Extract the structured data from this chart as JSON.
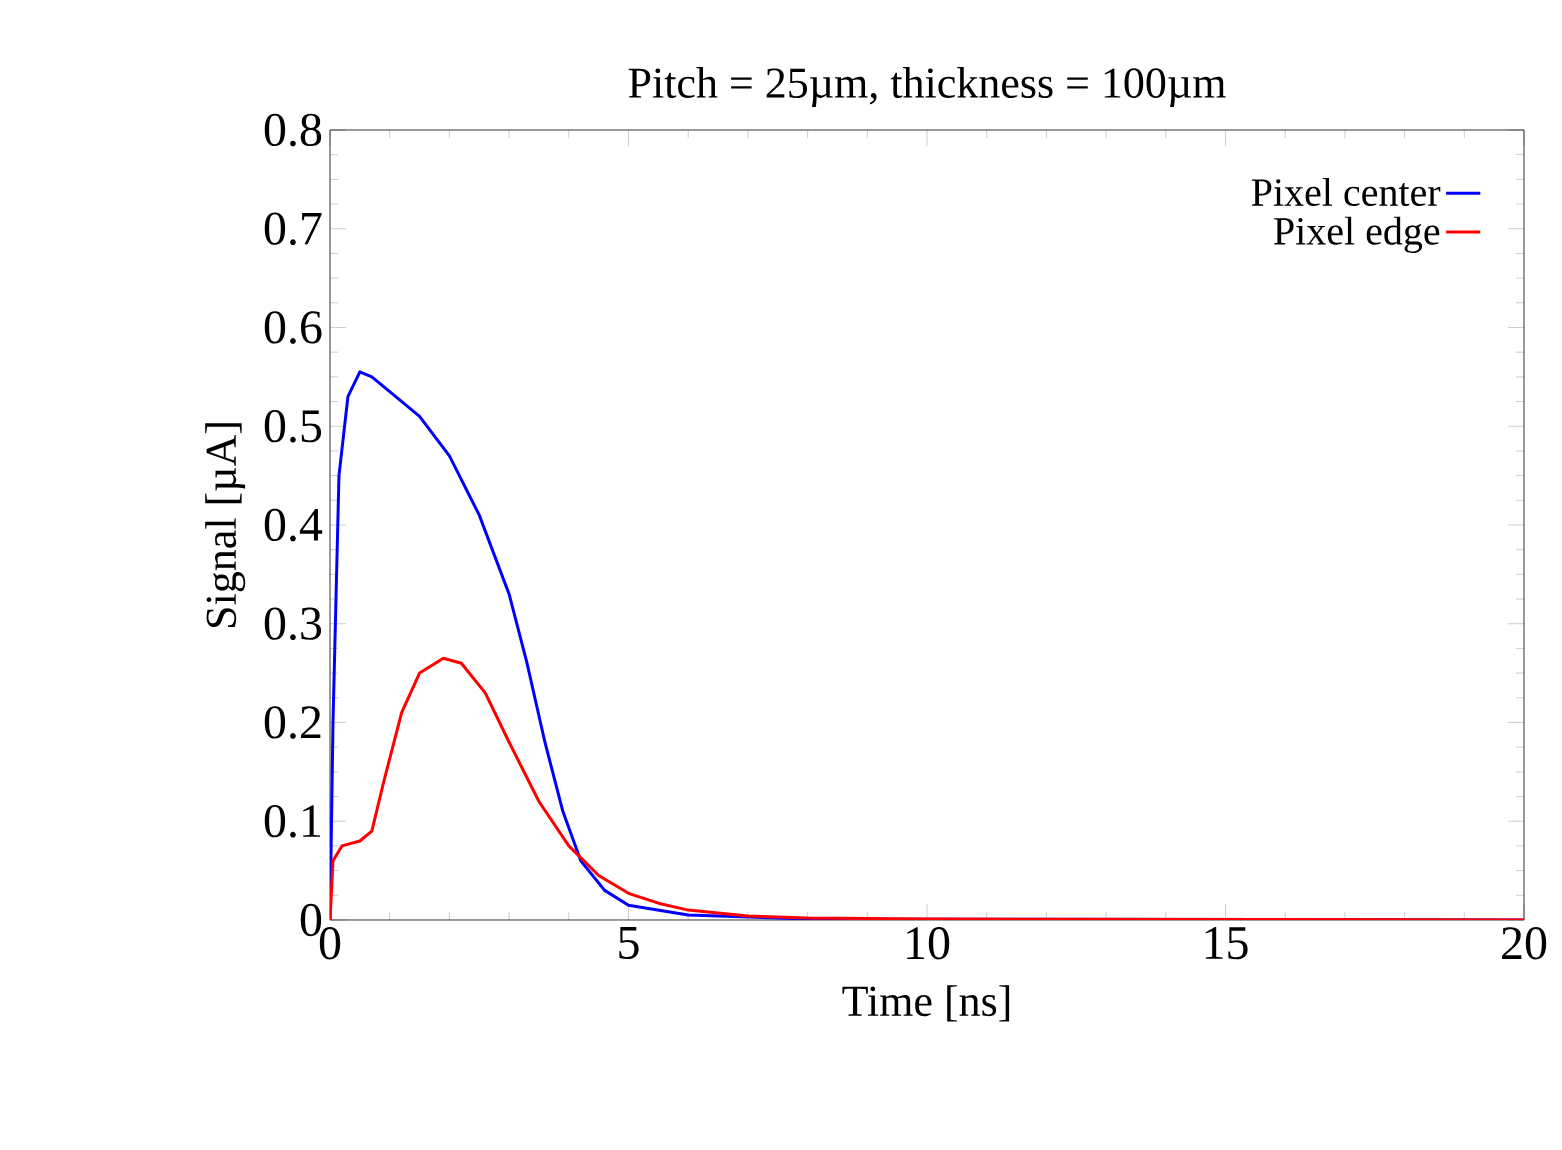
{
  "chart_data": {
    "type": "line",
    "title": "Pitch = 25µm, thickness = 100µm",
    "xlabel": "Time [ns]",
    "ylabel": "Signal [µA]",
    "xlim": [
      0,
      20
    ],
    "ylim": [
      0,
      0.8
    ],
    "xticks": [
      0,
      5,
      10,
      15,
      20
    ],
    "yticks": [
      0,
      0.1,
      0.2,
      0.3,
      0.4,
      0.5,
      0.6,
      0.7,
      0.8
    ],
    "grid": false,
    "legend": "top right",
    "marker": "none",
    "line_style": "solid",
    "series": [
      {
        "name": "Pixel center",
        "color": "#0000ff",
        "x": [
          0,
          0.05,
          0.15,
          0.3,
          0.5,
          0.7,
          1,
          1.5,
          2,
          2.5,
          3,
          3.3,
          3.6,
          3.9,
          4.2,
          4.6,
          5,
          6,
          8,
          20
        ],
        "values": [
          0,
          0.2,
          0.45,
          0.53,
          0.555,
          0.55,
          0.535,
          0.51,
          0.47,
          0.41,
          0.33,
          0.26,
          0.18,
          0.11,
          0.06,
          0.03,
          0.015,
          0.005,
          0.001,
          0
        ]
      },
      {
        "name": "Pixel edge",
        "color": "#ff0000",
        "x": [
          0,
          0.05,
          0.2,
          0.5,
          0.7,
          0.9,
          1.2,
          1.5,
          1.9,
          2.2,
          2.6,
          3,
          3.5,
          4,
          4.5,
          5,
          5.5,
          6,
          7,
          8,
          10,
          20
        ],
        "values": [
          0,
          0.06,
          0.075,
          0.08,
          0.09,
          0.14,
          0.21,
          0.25,
          0.265,
          0.26,
          0.23,
          0.18,
          0.12,
          0.075,
          0.045,
          0.027,
          0.017,
          0.01,
          0.004,
          0.002,
          0.001,
          0
        ]
      }
    ]
  }
}
